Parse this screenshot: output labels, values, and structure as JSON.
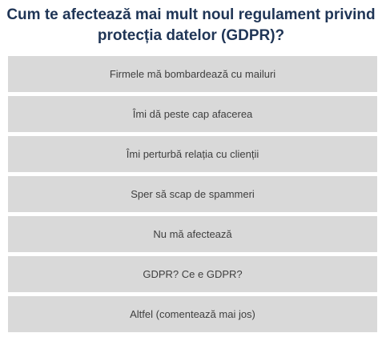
{
  "poll": {
    "question_line1": "Cum te afectează mai mult noul regulament privind",
    "question_line2": "protecția datelor (GDPR)?",
    "options": [
      "Firmele mă bombardează cu mailuri",
      "Îmi dă peste cap afacerea",
      "Îmi perturbă relația cu clienții",
      "Sper să scap de spammeri",
      "Nu mă afectează",
      "GDPR? Ce e GDPR?",
      "Altfel (comentează mai jos)"
    ]
  },
  "colors": {
    "question_text": "#1f3556",
    "option_background": "#d9d9d9",
    "option_text": "#3f3f3f"
  }
}
